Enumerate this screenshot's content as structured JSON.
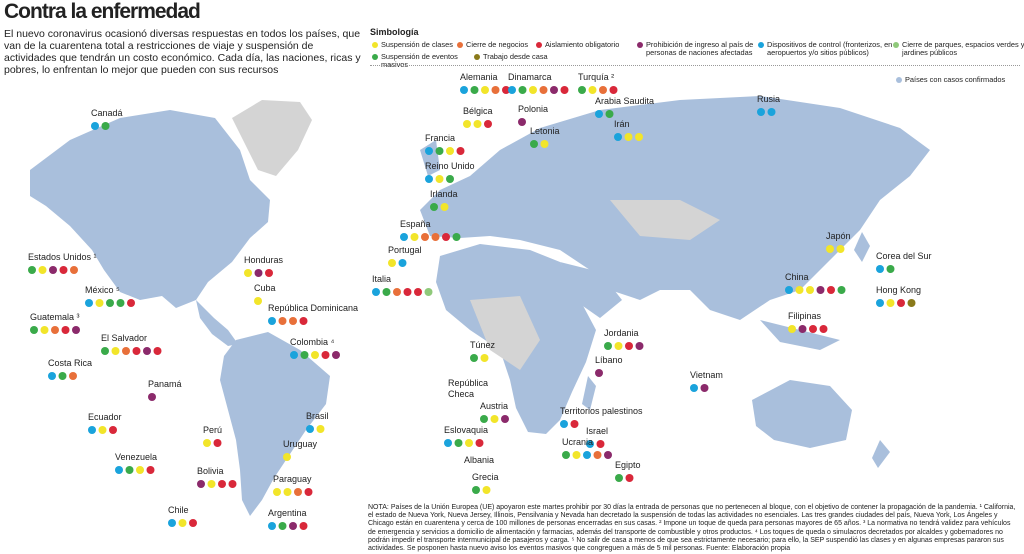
{
  "header": {
    "title": "Contra la enfermedad",
    "intro": "El nuevo coronavirus ocasionó diversas respuestas en todos los países, que van de la cuarentena total a restricciones de viaje y suspensión de actividades que tendrán un costo económico. Cada día, las naciones, ricas y pobres, lo enfrentan lo mejor que pueden con sus recursos"
  },
  "legend": {
    "title": "Simbología",
    "items": [
      {
        "label": "Suspensión de clases",
        "color": "#f2e52a"
      },
      {
        "label": "Cierre de negocios",
        "color": "#e8703a"
      },
      {
        "label": "Aislamiento obligatorio",
        "color": "#d9283a"
      },
      {
        "label": "Prohibición de ingreso al país de personas de naciones afectadas",
        "color": "#8b2a6b"
      },
      {
        "label": "Dispositivos de control (fronterizos, en aeropuertos y/o sitios públicos)",
        "color": "#1aa3dc"
      },
      {
        "label": "Cierre de parques, espacios verdes y jardines públicos",
        "color": "#8fc97a"
      },
      {
        "label": "Suspensión de eventos masivos",
        "color": "#3aaa4a"
      },
      {
        "label": "Trabajo desde casa",
        "color": "#8a7a1a"
      }
    ],
    "confirmed": {
      "label": "Países con casos confirmados",
      "color": "#a9bfdc"
    },
    "no_cases_color": "#d4d4d4"
  },
  "countries": [
    {
      "name": "Canadá",
      "dots": [
        "#1aa3dc",
        "#3aaa4a"
      ]
    },
    {
      "name": "Estados Unidos ¹",
      "dots": [
        "#3aaa4a",
        "#f2e52a",
        "#8b2a6b",
        "#d9283a",
        "#e8703a"
      ]
    },
    {
      "name": "México ⁵",
      "dots": [
        "#1aa3dc",
        "#f2e52a",
        "#3aaa4a",
        "#3aaa4a",
        "#d9283a"
      ]
    },
    {
      "name": "Guatemala ³",
      "dots": [
        "#3aaa4a",
        "#f2e52a",
        "#e8703a",
        "#d9283a",
        "#8b2a6b"
      ]
    },
    {
      "name": "El Salvador",
      "dots": [
        "#3aaa4a",
        "#f2e52a",
        "#e8703a",
        "#d9283a",
        "#8b2a6b",
        "#d9283a"
      ]
    },
    {
      "name": "Costa Rica",
      "dots": [
        "#1aa3dc",
        "#3aaa4a",
        "#e8703a"
      ]
    },
    {
      "name": "Panamá",
      "dots": [
        "#8b2a6b"
      ]
    },
    {
      "name": "Ecuador",
      "dots": [
        "#1aa3dc",
        "#f2e52a",
        "#d9283a"
      ]
    },
    {
      "name": "Honduras",
      "dots": [
        "#f2e52a",
        "#8b2a6b",
        "#d9283a"
      ]
    },
    {
      "name": "Cuba",
      "dots": [
        "#f2e52a"
      ]
    },
    {
      "name": "República Dominicana",
      "dots": [
        "#1aa3dc",
        "#e8703a",
        "#e8703a",
        "#d9283a"
      ]
    },
    {
      "name": "Colombia ⁴",
      "dots": [
        "#1aa3dc",
        "#3aaa4a",
        "#f2e52a",
        "#d9283a",
        "#8b2a6b"
      ]
    },
    {
      "name": "Perú",
      "dots": [
        "#f2e52a",
        "#d9283a"
      ]
    },
    {
      "name": "Brasil",
      "dots": [
        "#1aa3dc",
        "#f2e52a"
      ]
    },
    {
      "name": "Uruguay",
      "dots": [
        "#f2e52a"
      ]
    },
    {
      "name": "Venezuela",
      "dots": [
        "#1aa3dc",
        "#3aaa4a",
        "#f2e52a",
        "#d9283a"
      ]
    },
    {
      "name": "Bolivia",
      "dots": [
        "#8b2a6b",
        "#f2e52a",
        "#d9283a",
        "#d9283a"
      ]
    },
    {
      "name": "Paraguay",
      "dots": [
        "#f2e52a",
        "#f2e52a",
        "#e8703a",
        "#d9283a"
      ]
    },
    {
      "name": "Chile",
      "dots": [
        "#1aa3dc",
        "#f2e52a",
        "#d9283a"
      ]
    },
    {
      "name": "Argentina",
      "dots": [
        "#1aa3dc",
        "#3aaa4a",
        "#8b2a6b",
        "#d9283a"
      ]
    },
    {
      "name": "Alemania",
      "dots": [
        "#1aa3dc",
        "#3aaa4a",
        "#f2e52a",
        "#e8703a",
        "#d9283a"
      ]
    },
    {
      "name": "Dinamarca",
      "dots": [
        "#1aa3dc",
        "#3aaa4a",
        "#f2e52a",
        "#e8703a",
        "#8b2a6b",
        "#d9283a"
      ]
    },
    {
      "name": "Turquía ²",
      "dots": [
        "#3aaa4a",
        "#f2e52a",
        "#e8703a",
        "#d9283a"
      ]
    },
    {
      "name": "Bélgica",
      "dots": [
        "#f2e52a",
        "#f2e52a",
        "#d9283a"
      ]
    },
    {
      "name": "Polonia",
      "dots": [
        "#8b2a6b"
      ]
    },
    {
      "name": "Letonia",
      "dots": [
        "#3aaa4a",
        "#f2e52a"
      ]
    },
    {
      "name": "Arabia Saudita",
      "dots": [
        "#1aa3dc",
        "#3aaa4a"
      ]
    },
    {
      "name": "Irán",
      "dots": [
        "#1aa3dc",
        "#f2e52a",
        "#f2e52a"
      ]
    },
    {
      "name": "Rusia",
      "dots": [
        "#1aa3dc",
        "#1aa3dc"
      ]
    },
    {
      "name": "Francia",
      "dots": [
        "#1aa3dc",
        "#3aaa4a",
        "#f2e52a",
        "#d9283a"
      ]
    },
    {
      "name": "Reino Unido",
      "dots": [
        "#1aa3dc",
        "#f2e52a",
        "#3aaa4a"
      ]
    },
    {
      "name": "Irlanda",
      "dots": [
        "#3aaa4a",
        "#f2e52a"
      ]
    },
    {
      "name": "España",
      "dots": [
        "#1aa3dc",
        "#f2e52a",
        "#e8703a",
        "#e8703a",
        "#d9283a",
        "#3aaa4a"
      ]
    },
    {
      "name": "Portugal",
      "dots": [
        "#f2e52a",
        "#1aa3dc"
      ]
    },
    {
      "name": "Japón",
      "dots": [
        "#f2e52a",
        "#f2e52a"
      ]
    },
    {
      "name": "Corea del Sur",
      "dots": [
        "#1aa3dc",
        "#3aaa4a"
      ]
    },
    {
      "name": "China",
      "dots": [
        "#1aa3dc",
        "#f2e52a",
        "#f2e52a",
        "#8b2a6b",
        "#d9283a",
        "#3aaa4a"
      ]
    },
    {
      "name": "Hong Kong",
      "dots": [
        "#1aa3dc",
        "#f2e52a",
        "#d9283a",
        "#8a7a1a"
      ]
    },
    {
      "name": "Italia",
      "dots": [
        "#1aa3dc",
        "#3aaa4a",
        "#e8703a",
        "#d9283a",
        "#d9283a",
        "#8fc97a"
      ]
    },
    {
      "name": "Filipinas",
      "dots": [
        "#f2e52a",
        "#8b2a6b",
        "#d9283a",
        "#d9283a"
      ]
    },
    {
      "name": "Jordania",
      "dots": [
        "#3aaa4a",
        "#f2e52a",
        "#d9283a",
        "#8b2a6b"
      ]
    },
    {
      "name": "Túnez",
      "dots": [
        "#3aaa4a",
        "#f2e52a"
      ]
    },
    {
      "name": "Líbano",
      "dots": [
        "#8b2a6b"
      ]
    },
    {
      "name": "Vietnam",
      "dots": [
        "#1aa3dc",
        "#8b2a6b"
      ]
    },
    {
      "name": "República Checa",
      "dots": []
    },
    {
      "name": "Austria",
      "dots": [
        "#3aaa4a",
        "#f2e52a",
        "#8b2a6b"
      ]
    },
    {
      "name": "Territorios palestinos",
      "dots": [
        "#1aa3dc",
        "#d9283a"
      ]
    },
    {
      "name": "Eslovaquia",
      "dots": [
        "#1aa3dc",
        "#3aaa4a",
        "#f2e52a",
        "#d9283a"
      ]
    },
    {
      "name": "Israel",
      "dots": [
        "#1aa3dc",
        "#d9283a"
      ]
    },
    {
      "name": "Ucrania",
      "dots": [
        "#3aaa4a",
        "#f2e52a",
        "#1aa3dc",
        "#e8703a",
        "#8b2a6b"
      ]
    },
    {
      "name": "Albania",
      "dots": []
    },
    {
      "name": "Egipto",
      "dots": [
        "#3aaa4a",
        "#d9283a"
      ]
    },
    {
      "name": "Grecia",
      "dots": [
        "#3aaa4a",
        "#f2e52a"
      ]
    }
  ],
  "note": "NOTA: Países de la Unión Europea (UE) apoyaron este martes prohibir por 30 días la entrada de personas que no pertenecen al bloque, con el objetivo de contener la propagación de la pandemia. ¹ California, el estado de Nueva York, Nueva Jersey, Illinois, Pensilvania y Nevada han decretado la suspensión de todas las actividades no esenciales. Las tres grandes ciudades del país, Nueva York, Los Ángeles y Chicago están en cuarentena y cerca de 100 millones de personas encerradas en sus casas. ² Impone un toque de queda para personas mayores de 65 años. ³ La normativa no tendrá validez para vehículos de emergencia y servicios a domicilio de alimentación y farmacias, además del transporte de combustible y otros productos. ⁴ Los toques de queda o simulacros decretados por alcaldes y gobernadores no podrán impedir el transporte intermunicipal de pasajeros y carga. ⁵ No salir de casa a menos de que sea estrictamente necesario; para ello, la SEP suspendió las clases y en algunas empresas pararon sus actividades. Se posponen hasta nuevo aviso los eventos masivos que congreguen a más de 5 mil personas. Fuente: Elaboración propia"
}
